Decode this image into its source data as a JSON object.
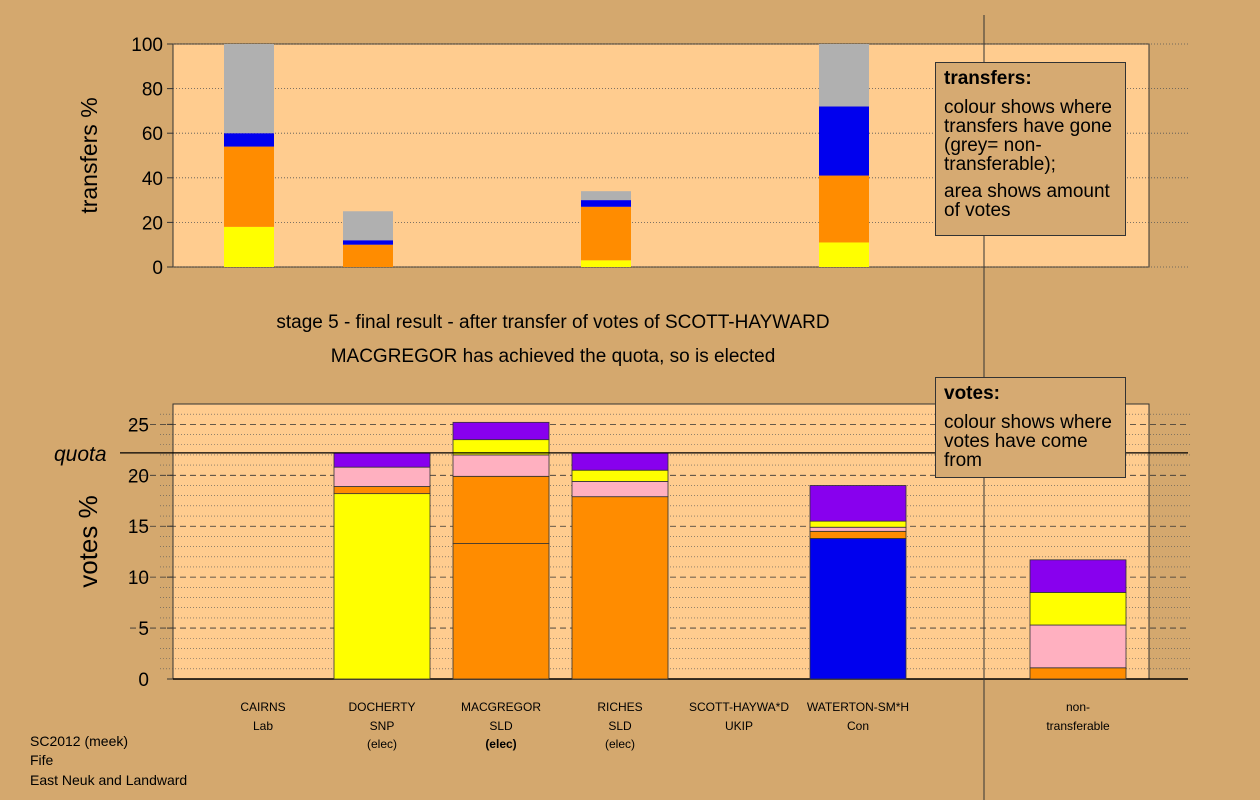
{
  "captions": {
    "stage": "stage 5 - final result - after transfer of votes of SCOTT-HAYWARD",
    "result": "MACGREGOR has achieved the quota, so is elected"
  },
  "legend_transfers": {
    "title": "transfers:",
    "text1": "colour shows where transfers have gone (grey= non-transferable);",
    "text2": "area shows amount of votes"
  },
  "legend_votes": {
    "title": "votes:",
    "text1": "colour shows where votes have come from"
  },
  "footer": {
    "line1": "SC2012 (meek)",
    "line2": "Fife",
    "line3": "East Neuk and Landward"
  },
  "colors": {
    "background": "#d4a86e",
    "plot_bg": "#ffcc8f",
    "SNP": "#ffff00",
    "SLD": "#ff8c00",
    "Con": "#0000ee",
    "Lab": "#ffb0c0",
    "UKIP": "#8800ee",
    "non_transferable": "#b0b0b0"
  },
  "chart_data": [
    {
      "type": "bar",
      "stacked": true,
      "ylabel": "transfers %",
      "ylim": [
        0,
        100
      ],
      "yticks": [
        0,
        20,
        40,
        60,
        80,
        100
      ],
      "categories": [
        "CAIRNS",
        "DOCHERTY",
        "MACGREGOR",
        "RICHES",
        "SCOTT-HAYWA*D",
        "WATERTON-SM*H"
      ],
      "series": [
        {
          "color_key": "SNP",
          "values": [
            18,
            0,
            0,
            3,
            0,
            11
          ]
        },
        {
          "color_key": "SLD",
          "values": [
            36,
            10,
            0,
            24,
            0,
            30
          ]
        },
        {
          "color_key": "Con",
          "values": [
            6,
            2,
            0,
            3,
            0,
            31
          ]
        },
        {
          "color_key": "non_transferable",
          "values": [
            40,
            13,
            0,
            4,
            0,
            28
          ]
        }
      ]
    },
    {
      "type": "bar",
      "stacked": true,
      "ylabel": "votes %",
      "ylim": [
        0,
        27
      ],
      "yticks": [
        0,
        5,
        10,
        15,
        20,
        25
      ],
      "quota": 22.2,
      "quota_label": "quota",
      "categories": [
        {
          "name": "CAIRNS",
          "party": "Lab",
          "status": ""
        },
        {
          "name": "DOCHERTY",
          "party": "SNP",
          "status": "(elec)"
        },
        {
          "name": "MACGREGOR",
          "party": "SLD",
          "status": "(elec)"
        },
        {
          "name": "RICHES",
          "party": "SLD",
          "status": "(elec)"
        },
        {
          "name": "SCOTT-HAYWA*D",
          "party": "UKIP",
          "status": ""
        },
        {
          "name": "WATERTON-SM*H",
          "party": "Con",
          "status": ""
        }
      ],
      "extra_category": {
        "line1": "non-",
        "line2": "transferable"
      },
      "stacks": [
        [],
        [
          {
            "color_key": "SNP",
            "value": 18.2
          },
          {
            "color_key": "SLD",
            "value": 0.7
          },
          {
            "color_key": "Lab",
            "value": 1.9
          },
          {
            "color_key": "UKIP",
            "value": 1.4
          }
        ],
        [
          {
            "color_key": "SLD",
            "value": 13.3
          },
          {
            "color_key": "SLD",
            "value": 6.6
          },
          {
            "color_key": "Lab",
            "value": 2.1
          },
          {
            "color_key": "SNP",
            "value": 1.5
          },
          {
            "color_key": "UKIP",
            "value": 1.7
          }
        ],
        [
          {
            "color_key": "SLD",
            "value": 17.9
          },
          {
            "color_key": "Lab",
            "value": 1.5
          },
          {
            "color_key": "SNP",
            "value": 1.1
          },
          {
            "color_key": "UKIP",
            "value": 1.7
          }
        ],
        [],
        [
          {
            "color_key": "Con",
            "value": 13.8
          },
          {
            "color_key": "SLD",
            "value": 0.7
          },
          {
            "color_key": "Lab",
            "value": 0.4
          },
          {
            "color_key": "SNP",
            "value": 0.6
          },
          {
            "color_key": "UKIP",
            "value": 3.5
          }
        ]
      ],
      "non_transferable_stack": [
        {
          "color_key": "SLD",
          "value": 1.1
        },
        {
          "color_key": "Lab",
          "value": 4.2
        },
        {
          "color_key": "SNP",
          "value": 3.2
        },
        {
          "color_key": "UKIP",
          "value": 3.2
        }
      ]
    }
  ]
}
